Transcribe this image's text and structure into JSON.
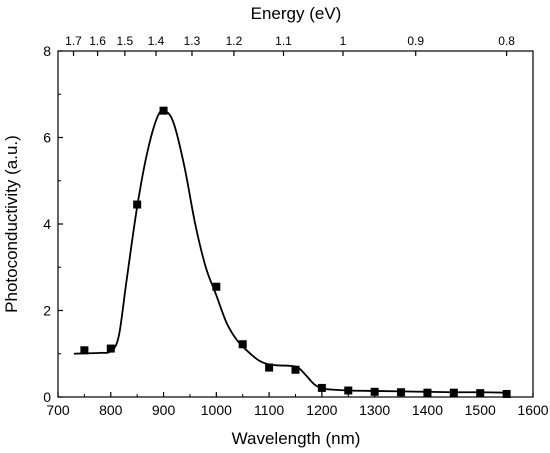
{
  "chart_data": {
    "type": "scatter",
    "title": "",
    "xlabel": "Wavelength (nm)",
    "ylabel": "Photoconductivity (a.u.)",
    "top_axis_label": "Energy (eV)",
    "xlim": [
      700,
      1600
    ],
    "ylim": [
      0,
      8
    ],
    "x_ticks": [
      700,
      800,
      900,
      1000,
      1100,
      1200,
      1300,
      1400,
      1500,
      1600
    ],
    "y_ticks": [
      0,
      2,
      4,
      6,
      8
    ],
    "top_ticks": [
      {
        "label": "1.7",
        "energy": 1.7
      },
      {
        "label": "1.6",
        "energy": 1.6
      },
      {
        "label": "1.5",
        "energy": 1.5
      },
      {
        "label": "1.4",
        "energy": 1.4
      },
      {
        "label": "1.3",
        "energy": 1.3
      },
      {
        "label": "1.2",
        "energy": 1.2
      },
      {
        "label": "1.1",
        "energy": 1.1
      },
      {
        "label": "1",
        "energy": 1.0
      },
      {
        "label": "0.9",
        "energy": 0.9
      },
      {
        "label": "0.8",
        "energy": 0.8
      }
    ],
    "grid": false,
    "series": [
      {
        "marker": "square",
        "color": "#000000",
        "x": [
          750,
          800,
          850,
          900,
          1000,
          1050,
          1100,
          1150,
          1200,
          1250,
          1300,
          1350,
          1400,
          1450,
          1500,
          1550
        ],
        "y": [
          1.08,
          1.12,
          4.45,
          6.62,
          2.55,
          1.22,
          0.68,
          0.63,
          0.21,
          0.15,
          0.12,
          0.11,
          0.1,
          0.1,
          0.09,
          0.07
        ]
      }
    ],
    "fit_curve": {
      "style": "line",
      "color": "#000000",
      "x": [
        730,
        750,
        780,
        800,
        815,
        830,
        850,
        870,
        890,
        905,
        920,
        940,
        960,
        980,
        1000,
        1020,
        1040,
        1060,
        1080,
        1100,
        1120,
        1140,
        1155,
        1170,
        1185,
        1200,
        1220,
        1250,
        1300,
        1350,
        1400,
        1450,
        1500,
        1550
      ],
      "y": [
        1.0,
        1.01,
        1.02,
        1.06,
        1.4,
        2.7,
        4.4,
        5.7,
        6.52,
        6.6,
        6.3,
        5.3,
        4.0,
        3.0,
        2.35,
        1.7,
        1.3,
        1.05,
        0.85,
        0.75,
        0.73,
        0.72,
        0.68,
        0.5,
        0.3,
        0.2,
        0.17,
        0.15,
        0.14,
        0.13,
        0.12,
        0.11,
        0.11,
        0.1
      ]
    }
  }
}
